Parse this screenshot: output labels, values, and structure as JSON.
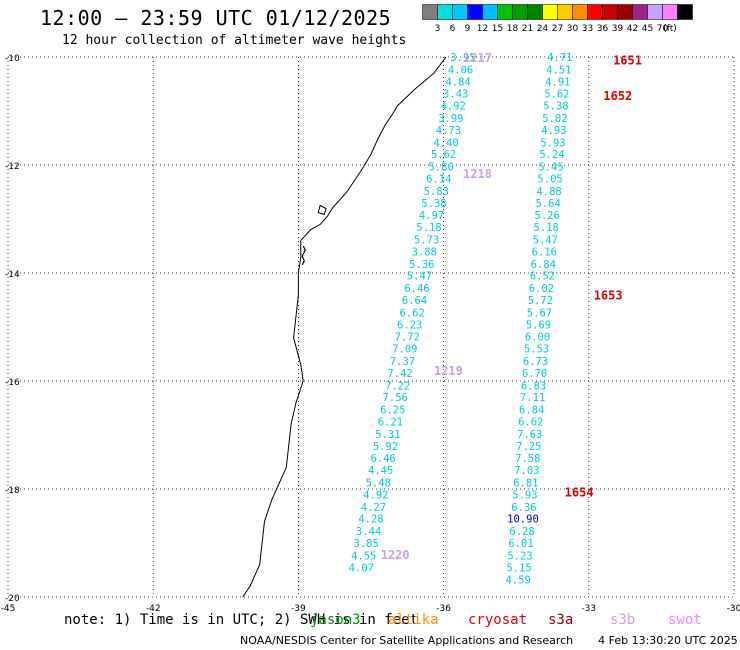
{
  "header": {
    "title": "12:00 – 23:59 UTC 01/12/2025",
    "subtitle": "12 hour collection of altimeter wave heights"
  },
  "color_scale": {
    "unit": "(ft)",
    "bins": [
      {
        "label": "",
        "color": "#7f7f7f"
      },
      {
        "label": "3",
        "color": "#00e0e0"
      },
      {
        "label": "6",
        "color": "#00c8ff"
      },
      {
        "label": "9",
        "color": "#0000ff"
      },
      {
        "label": "12",
        "color": "#00bbff"
      },
      {
        "label": "15",
        "color": "#00c000"
      },
      {
        "label": "18",
        "color": "#00a000"
      },
      {
        "label": "21",
        "color": "#008000"
      },
      {
        "label": "24",
        "color": "#ffff00"
      },
      {
        "label": "27",
        "color": "#ffcc00"
      },
      {
        "label": "30",
        "color": "#ff8c00"
      },
      {
        "label": "33",
        "color": "#ff0000"
      },
      {
        "label": "36",
        "color": "#cc0000"
      },
      {
        "label": "39",
        "color": "#990000"
      },
      {
        "label": "42",
        "color": "#a0208c"
      },
      {
        "label": "45",
        "color": "#c8a0ff"
      },
      {
        "label": "70",
        "color": "#ff80ff"
      },
      {
        "label": "",
        "color": "#000000"
      }
    ]
  },
  "map": {
    "lon_ticks": [
      "-45",
      "-42",
      "-39",
      "-36",
      "-33",
      "-30"
    ],
    "lat_ticks": [
      "-10",
      "-12",
      "-14",
      "-16",
      "-18",
      "-20"
    ],
    "lon_range": [
      -45,
      -30
    ],
    "lat_range": [
      -20,
      -10
    ],
    "track_labels": [
      {
        "text": "1217",
        "lon": -35.3,
        "lat": -10.0,
        "color": "#c8a0e6"
      },
      {
        "text": "1218",
        "lon": -35.3,
        "lat": -12.15,
        "color": "#c8a0e6"
      },
      {
        "text": "1219",
        "lon": -35.9,
        "lat": -15.8,
        "color": "#c8a0e6"
      },
      {
        "text": "1220",
        "lon": -37.0,
        "lat": -19.2,
        "color": "#c8a0e6"
      },
      {
        "text": "1651",
        "lon": -32.2,
        "lat": -10.05,
        "color": "#e00000"
      },
      {
        "text": "1652",
        "lon": -32.4,
        "lat": -10.7,
        "color": "#e00000"
      },
      {
        "text": "1653",
        "lon": -32.6,
        "lat": -14.4,
        "color": "#e00000"
      },
      {
        "text": "1654",
        "lon": -33.2,
        "lat": -18.05,
        "color": "#e00000"
      }
    ],
    "track_a": [
      {
        "v": "3.95",
        "lon": -35.6,
        "lat": -10.0
      },
      {
        "v": "4.06",
        "lon": -35.65,
        "lat": -10.23
      },
      {
        "v": "4.84",
        "lon": -35.7,
        "lat": -10.45
      },
      {
        "v": "3.43",
        "lon": -35.75,
        "lat": -10.68
      },
      {
        "v": "4.92",
        "lon": -35.8,
        "lat": -10.9
      },
      {
        "v": "3.99",
        "lon": -35.85,
        "lat": -11.13
      },
      {
        "v": "4.73",
        "lon": -35.9,
        "lat": -11.35
      },
      {
        "v": "4.40",
        "lon": -35.95,
        "lat": -11.58
      },
      {
        "v": "5.62",
        "lon": -36.0,
        "lat": -11.8
      },
      {
        "v": "5.80",
        "lon": -36.05,
        "lat": -12.03
      },
      {
        "v": "6.14",
        "lon": -36.1,
        "lat": -12.25
      },
      {
        "v": "5.83",
        "lon": -36.15,
        "lat": -12.48
      },
      {
        "v": "5.38",
        "lon": -36.2,
        "lat": -12.7
      },
      {
        "v": "4.97",
        "lon": -36.25,
        "lat": -12.93
      },
      {
        "v": "5.18",
        "lon": -36.3,
        "lat": -13.15
      },
      {
        "v": "5.73",
        "lon": -36.35,
        "lat": -13.38
      },
      {
        "v": "3.88",
        "lon": -36.4,
        "lat": -13.6
      },
      {
        "v": "5.36",
        "lon": -36.45,
        "lat": -13.83
      },
      {
        "v": "5.47",
        "lon": -36.5,
        "lat": -14.05
      },
      {
        "v": "6.46",
        "lon": -36.55,
        "lat": -14.28
      },
      {
        "v": "6.64",
        "lon": -36.6,
        "lat": -14.5
      },
      {
        "v": "6.62",
        "lon": -36.65,
        "lat": -14.73
      },
      {
        "v": "6.23",
        "lon": -36.7,
        "lat": -14.95
      },
      {
        "v": "7.72",
        "lon": -36.75,
        "lat": -15.18
      },
      {
        "v": "7.09",
        "lon": -36.8,
        "lat": -15.4
      },
      {
        "v": "7.37",
        "lon": -36.85,
        "lat": -15.63
      },
      {
        "v": "7.42",
        "lon": -36.9,
        "lat": -15.85
      },
      {
        "v": "7.22",
        "lon": -36.95,
        "lat": -16.08
      },
      {
        "v": "7.56",
        "lon": -37.0,
        "lat": -16.3
      },
      {
        "v": "6.25",
        "lon": -37.05,
        "lat": -16.53
      },
      {
        "v": "6.21",
        "lon": -37.1,
        "lat": -16.75
      },
      {
        "v": "5.31",
        "lon": -37.15,
        "lat": -16.98
      },
      {
        "v": "5.92",
        "lon": -37.2,
        "lat": -17.2
      },
      {
        "v": "6.46",
        "lon": -37.25,
        "lat": -17.43
      },
      {
        "v": "4.45",
        "lon": -37.3,
        "lat": -17.65
      },
      {
        "v": "5.48",
        "lon": -37.35,
        "lat": -17.88
      },
      {
        "v": "4.92",
        "lon": -37.4,
        "lat": -18.1
      },
      {
        "v": "4.27",
        "lon": -37.45,
        "lat": -18.33
      },
      {
        "v": "4.28",
        "lon": -37.5,
        "lat": -18.55
      },
      {
        "v": "3.44",
        "lon": -37.55,
        "lat": -18.78
      },
      {
        "v": "3.85",
        "lon": -37.6,
        "lat": -19.0
      },
      {
        "v": "4.55",
        "lon": -37.65,
        "lat": -19.23
      },
      {
        "v": "4.07",
        "lon": -37.7,
        "lat": -19.45
      }
    ],
    "track_b": [
      {
        "v": "4.71",
        "lon": -33.6,
        "lat": -10.0
      },
      {
        "v": "4.51",
        "lon": -33.62,
        "lat": -10.23
      },
      {
        "v": "4.91",
        "lon": -33.64,
        "lat": -10.45
      },
      {
        "v": "5.62",
        "lon": -33.66,
        "lat": -10.68
      },
      {
        "v": "5.38",
        "lon": -33.68,
        "lat": -10.9
      },
      {
        "v": "5.02",
        "lon": -33.7,
        "lat": -11.13
      },
      {
        "v": "4.93",
        "lon": -33.72,
        "lat": -11.35
      },
      {
        "v": "5.93",
        "lon": -33.74,
        "lat": -11.58
      },
      {
        "v": "5.24",
        "lon": -33.76,
        "lat": -11.8
      },
      {
        "v": "5.45",
        "lon": -33.78,
        "lat": -12.03
      },
      {
        "v": "5.05",
        "lon": -33.8,
        "lat": -12.25
      },
      {
        "v": "4.88",
        "lon": -33.82,
        "lat": -12.48
      },
      {
        "v": "5.64",
        "lon": -33.84,
        "lat": -12.7
      },
      {
        "v": "5.26",
        "lon": -33.86,
        "lat": -12.93
      },
      {
        "v": "5.18",
        "lon": -33.88,
        "lat": -13.15
      },
      {
        "v": "5.47",
        "lon": -33.9,
        "lat": -13.38
      },
      {
        "v": "6.16",
        "lon": -33.92,
        "lat": -13.6
      },
      {
        "v": "6.84",
        "lon": -33.94,
        "lat": -13.83
      },
      {
        "v": "6.52",
        "lon": -33.96,
        "lat": -14.05
      },
      {
        "v": "6.02",
        "lon": -33.98,
        "lat": -14.28
      },
      {
        "v": "5.72",
        "lon": -34.0,
        "lat": -14.5
      },
      {
        "v": "5.67",
        "lon": -34.02,
        "lat": -14.73
      },
      {
        "v": "5.69",
        "lon": -34.04,
        "lat": -14.95
      },
      {
        "v": "6.00",
        "lon": -34.06,
        "lat": -15.18
      },
      {
        "v": "5.53",
        "lon": -34.08,
        "lat": -15.4
      },
      {
        "v": "6.73",
        "lon": -34.1,
        "lat": -15.63
      },
      {
        "v": "6.70",
        "lon": -34.12,
        "lat": -15.85
      },
      {
        "v": "6.83",
        "lon": -34.14,
        "lat": -16.08
      },
      {
        "v": "7.11",
        "lon": -34.16,
        "lat": -16.3
      },
      {
        "v": "6.84",
        "lon": -34.18,
        "lat": -16.53
      },
      {
        "v": "6.62",
        "lon": -34.2,
        "lat": -16.75
      },
      {
        "v": "7.63",
        "lon": -34.22,
        "lat": -16.98
      },
      {
        "v": "7.25",
        "lon": -34.24,
        "lat": -17.2
      },
      {
        "v": "7.58",
        "lon": -34.26,
        "lat": -17.43
      },
      {
        "v": "7.03",
        "lon": -34.28,
        "lat": -17.65
      },
      {
        "v": "6.81",
        "lon": -34.3,
        "lat": -17.88
      },
      {
        "v": "5.93",
        "lon": -34.32,
        "lat": -18.1
      },
      {
        "v": "6.36",
        "lon": -34.34,
        "lat": -18.33
      },
      {
        "v": "10.90",
        "lon": -34.36,
        "lat": -18.55,
        "color": "#0000cc"
      },
      {
        "v": "6.28",
        "lon": -34.38,
        "lat": -18.78
      },
      {
        "v": "6.01",
        "lon": -34.4,
        "lat": -19.0
      },
      {
        "v": "5.23",
        "lon": -34.42,
        "lat": -19.23
      },
      {
        "v": "5.15",
        "lon": -34.44,
        "lat": -19.45
      },
      {
        "v": "4.59",
        "lon": -34.46,
        "lat": -19.68
      }
    ],
    "value_color": "#00c8dc"
  },
  "note": {
    "text": "note: 1) Time is in UTC; 2) SWH is in feet"
  },
  "satellites": [
    {
      "name": "jason3",
      "color": "#009900",
      "x": 310
    },
    {
      "name": "altika",
      "color": "#ff8c00",
      "x": 388
    },
    {
      "name": "cryosat",
      "color": "#e00000",
      "x": 468
    },
    {
      "name": "s3a",
      "color": "#a00000",
      "x": 548
    },
    {
      "name": "s3b",
      "color": "#c8a0e6",
      "x": 610
    },
    {
      "name": "swot",
      "color": "#ff80ff",
      "x": 668
    }
  ],
  "footer": {
    "credit": "NOAA/NESDIS Center for Satellite Applications and Research",
    "timestamp": "4 Feb 13:30:20 UTC 2025"
  }
}
